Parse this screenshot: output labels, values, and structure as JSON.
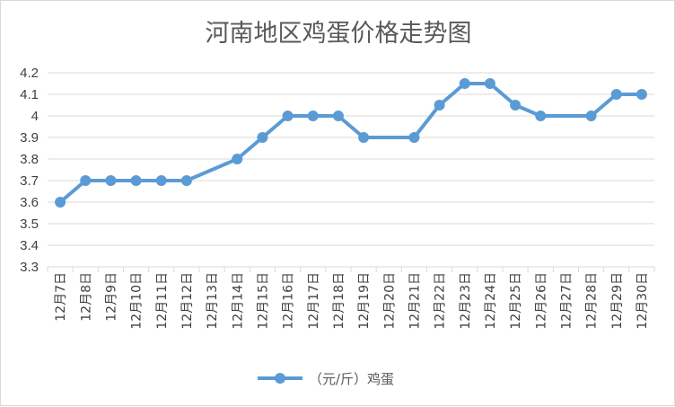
{
  "chart_data": {
    "type": "line",
    "title": "河南地区鸡蛋价格走势图",
    "categories": [
      "12月7日",
      "12月8日",
      "12月9日",
      "12月10日",
      "12月11日",
      "12月12日",
      "12月13日",
      "12月14日",
      "12月15日",
      "12月16日",
      "12月17日",
      "12月18日",
      "12月19日",
      "12月20日",
      "12月21日",
      "12月22日",
      "12月23日",
      "12月24日",
      "12月25日",
      "12月26日",
      "12月27日",
      "12月28日",
      "12月29日",
      "12月30日"
    ],
    "series": [
      {
        "name": "（元/斤）鸡蛋",
        "color": "#5b9bd5",
        "values": [
          3.6,
          3.7,
          3.7,
          3.7,
          3.7,
          3.7,
          null,
          3.8,
          3.9,
          4.0,
          4.0,
          4.0,
          3.9,
          null,
          3.9,
          4.05,
          4.15,
          4.15,
          4.05,
          4.0,
          null,
          4.0,
          4.1,
          4.1
        ]
      }
    ],
    "ylim": [
      3.3,
      4.2
    ],
    "yticks": [
      "3.3",
      "3.4",
      "3.5",
      "3.6",
      "3.7",
      "3.8",
      "3.9",
      "4",
      "4.1",
      "4.2"
    ],
    "grid": true,
    "legend_position": "bottom",
    "gridline_color": "#d9d9d9"
  }
}
